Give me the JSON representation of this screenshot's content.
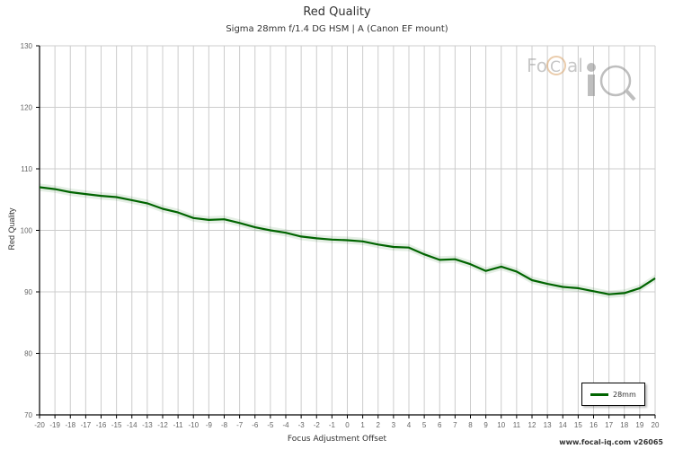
{
  "chart_data": {
    "type": "line",
    "title": "Red Quality",
    "subtitle": "Sigma 28mm f/1.4 DG HSM | A (Canon EF mount)",
    "xlabel": "Focus Adjustment Offset",
    "ylabel": "Red Quality",
    "xlim": [
      -20,
      20
    ],
    "ylim": [
      70,
      130
    ],
    "yticks": [
      70,
      80,
      90,
      100,
      110,
      120,
      130
    ],
    "xticks": [
      -20,
      -19,
      -18,
      -17,
      -16,
      -15,
      -14,
      -13,
      -12,
      -11,
      -10,
      -9,
      -8,
      -7,
      -6,
      -5,
      -4,
      -3,
      -2,
      -1,
      0,
      1,
      2,
      3,
      4,
      5,
      6,
      7,
      8,
      9,
      10,
      11,
      12,
      13,
      14,
      15,
      16,
      17,
      18,
      19,
      20
    ],
    "grid": true,
    "legend_position": "bottom-right",
    "x": [
      -20,
      -19,
      -18,
      -17,
      -16,
      -15,
      -14,
      -13,
      -12,
      -11,
      -10,
      -9,
      -8,
      -7,
      -6,
      -5,
      -4,
      -3,
      -2,
      -1,
      0,
      1,
      2,
      3,
      4,
      5,
      6,
      7,
      8,
      9,
      10,
      11,
      12,
      13,
      14,
      15,
      16,
      17,
      18,
      19,
      20
    ],
    "series": [
      {
        "name": "28mm",
        "color": "#006400",
        "band_color": "#e3f0e3",
        "values": [
          107.0,
          106.7,
          106.2,
          105.9,
          105.6,
          105.4,
          104.9,
          104.4,
          103.5,
          102.9,
          102.0,
          101.7,
          101.8,
          101.2,
          100.5,
          100.0,
          99.6,
          99.0,
          98.7,
          98.5,
          98.4,
          98.2,
          97.7,
          97.3,
          97.2,
          96.1,
          95.2,
          95.3,
          94.5,
          93.4,
          94.1,
          93.3,
          91.9,
          91.3,
          90.8,
          90.6,
          90.1,
          89.6,
          89.8,
          90.6,
          92.2
        ]
      }
    ]
  },
  "header": {
    "title": "Red Quality",
    "subtitle": "Sigma 28mm f/1.4 DG HSM | A (Canon EF mount)"
  },
  "axes": {
    "xlabel": "Focus Adjustment Offset",
    "ylabel": "Red Quality"
  },
  "legend": {
    "label": "28mm"
  },
  "watermark": {
    "text_left": "FoCal",
    "text_right": "iQ"
  },
  "footer": {
    "credit": "www.focal-iq.com  v26065"
  }
}
